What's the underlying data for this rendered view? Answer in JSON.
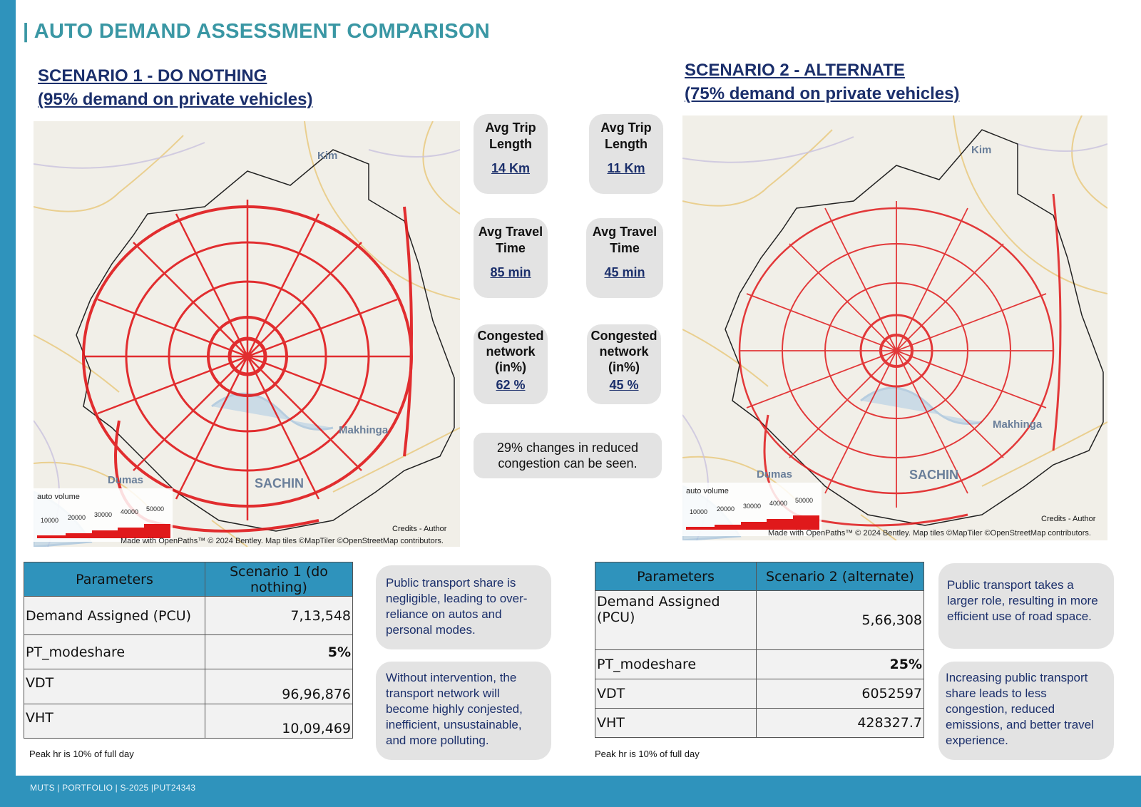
{
  "page": {
    "title": "| AUTO DEMAND ASSESSMENT COMPARISON",
    "footer": "MUTS  | PORTFOLIO | S-2025 |PUT24343"
  },
  "colors": {
    "accent": "#2f93bc",
    "title": "#3a97a4",
    "heading": "#1b2f6b",
    "network": "#e0191b"
  },
  "scenario1": {
    "heading_line1": "SCENARIO 1 -  DO NOTHING",
    "heading_line2": "(95% demand on private vehicles)",
    "map": {
      "places": [
        "Kim",
        "Makhinga",
        "Dumas",
        "SACHIN"
      ],
      "legend_title": "auto volume",
      "legend_values": [
        "10000",
        "20000",
        "30000",
        "40000",
        "50000"
      ],
      "credit": "Credits - Author",
      "attribution": "Made with OpenPaths™ © 2024 Bentley. Map tiles ©MapTiler ©OpenStreetMap contributors."
    },
    "metrics": [
      {
        "label": "Avg Trip Length",
        "value": "14 Km"
      },
      {
        "label": "Avg Travel Time",
        "value": "85 min"
      },
      {
        "label": "Congested network (in%)",
        "value": "62 %"
      }
    ],
    "table": {
      "headers": [
        "Parameters",
        "Scenario 1 (do nothing)"
      ],
      "rows": [
        {
          "param": "Demand Assigned (PCU)",
          "value": "7,13,548"
        },
        {
          "param": "PT_modeshare",
          "value": "5%"
        },
        {
          "param": "VDT",
          "value": "96,96,876"
        },
        {
          "param": "VHT",
          "value": "10,09,469"
        }
      ],
      "footnote": "Peak hr is 10% of full day"
    },
    "bubbles": [
      "Public transport share is negligible, leading to over-reliance on autos and personal modes.",
      "Without intervention, the transport network will become highly conjested, inefficient, unsustainable, and more polluting."
    ]
  },
  "scenario2": {
    "heading_line1": "SCENARIO 2 -  ALTERNATE",
    "heading_line2": "(75% demand on private vehicles)",
    "map": {
      "places": [
        "Kim",
        "Makhinga",
        "Dumas",
        "SACHIN"
      ],
      "legend_title": "auto volume",
      "legend_values": [
        "10000",
        "20000",
        "30000",
        "40000",
        "50000"
      ],
      "credit": "Credits - Author",
      "attribution": "Made with OpenPaths™ © 2024 Bentley. Map tiles ©MapTiler ©OpenStreetMap contributors."
    },
    "metrics": [
      {
        "label": "Avg Trip Length",
        "value": "11 Km"
      },
      {
        "label": "Avg Travel Time",
        "value": "45 min"
      },
      {
        "label": "Congested network (in%)",
        "value": "45 %"
      }
    ],
    "table": {
      "headers": [
        "Parameters",
        "Scenario 2 (alternate)"
      ],
      "rows": [
        {
          "param": "Demand Assigned (PCU)",
          "value": "5,66,308"
        },
        {
          "param": "PT_modeshare",
          "value": "25%"
        },
        {
          "param": "VDT",
          "value": "6052597"
        },
        {
          "param": "VHT",
          "value": "428327.7"
        }
      ],
      "footnote": "Peak hr is 10% of full day"
    },
    "bubbles": [
      "Public transport takes a larger role, resulting in more efficient use of road space.",
      "Increasing public transport share leads to less congestion, reduced emissions, and better travel experience."
    ]
  },
  "comparison_note": "29% changes in reduced congestion can be seen."
}
